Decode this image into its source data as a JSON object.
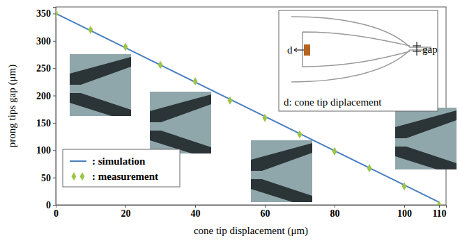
{
  "chart_data": {
    "type": "line",
    "x_label": "cone tip displacement (μm)",
    "y_label": "prong tips gap (μm)",
    "xlim": [
      0,
      112
    ],
    "xticks": [
      0,
      20,
      40,
      60,
      80,
      100,
      110
    ],
    "ylim": [
      0,
      362
    ],
    "yticks": [
      0,
      50,
      100,
      150,
      200,
      250,
      300,
      350
    ],
    "grid": false,
    "legend": "lower left",
    "series": [
      {
        "name": ": simulation",
        "type": "line",
        "color": "#4a7fc1",
        "line_style": "solid",
        "x": [
          0,
          110
        ],
        "values": [
          350,
          5
        ]
      },
      {
        "name": ": measurement",
        "type": "scatter",
        "color": "#9cc449",
        "marker": "diamond",
        "x": [
          0,
          10,
          20,
          30,
          40,
          50,
          60,
          70,
          80,
          90,
          100,
          110
        ],
        "values": [
          350,
          320,
          289,
          256,
          226,
          191,
          159,
          129,
          98,
          67,
          34,
          0
        ]
      }
    ],
    "annotations": [
      "d",
      "gap",
      "d: cone tip diplacement"
    ]
  }
}
